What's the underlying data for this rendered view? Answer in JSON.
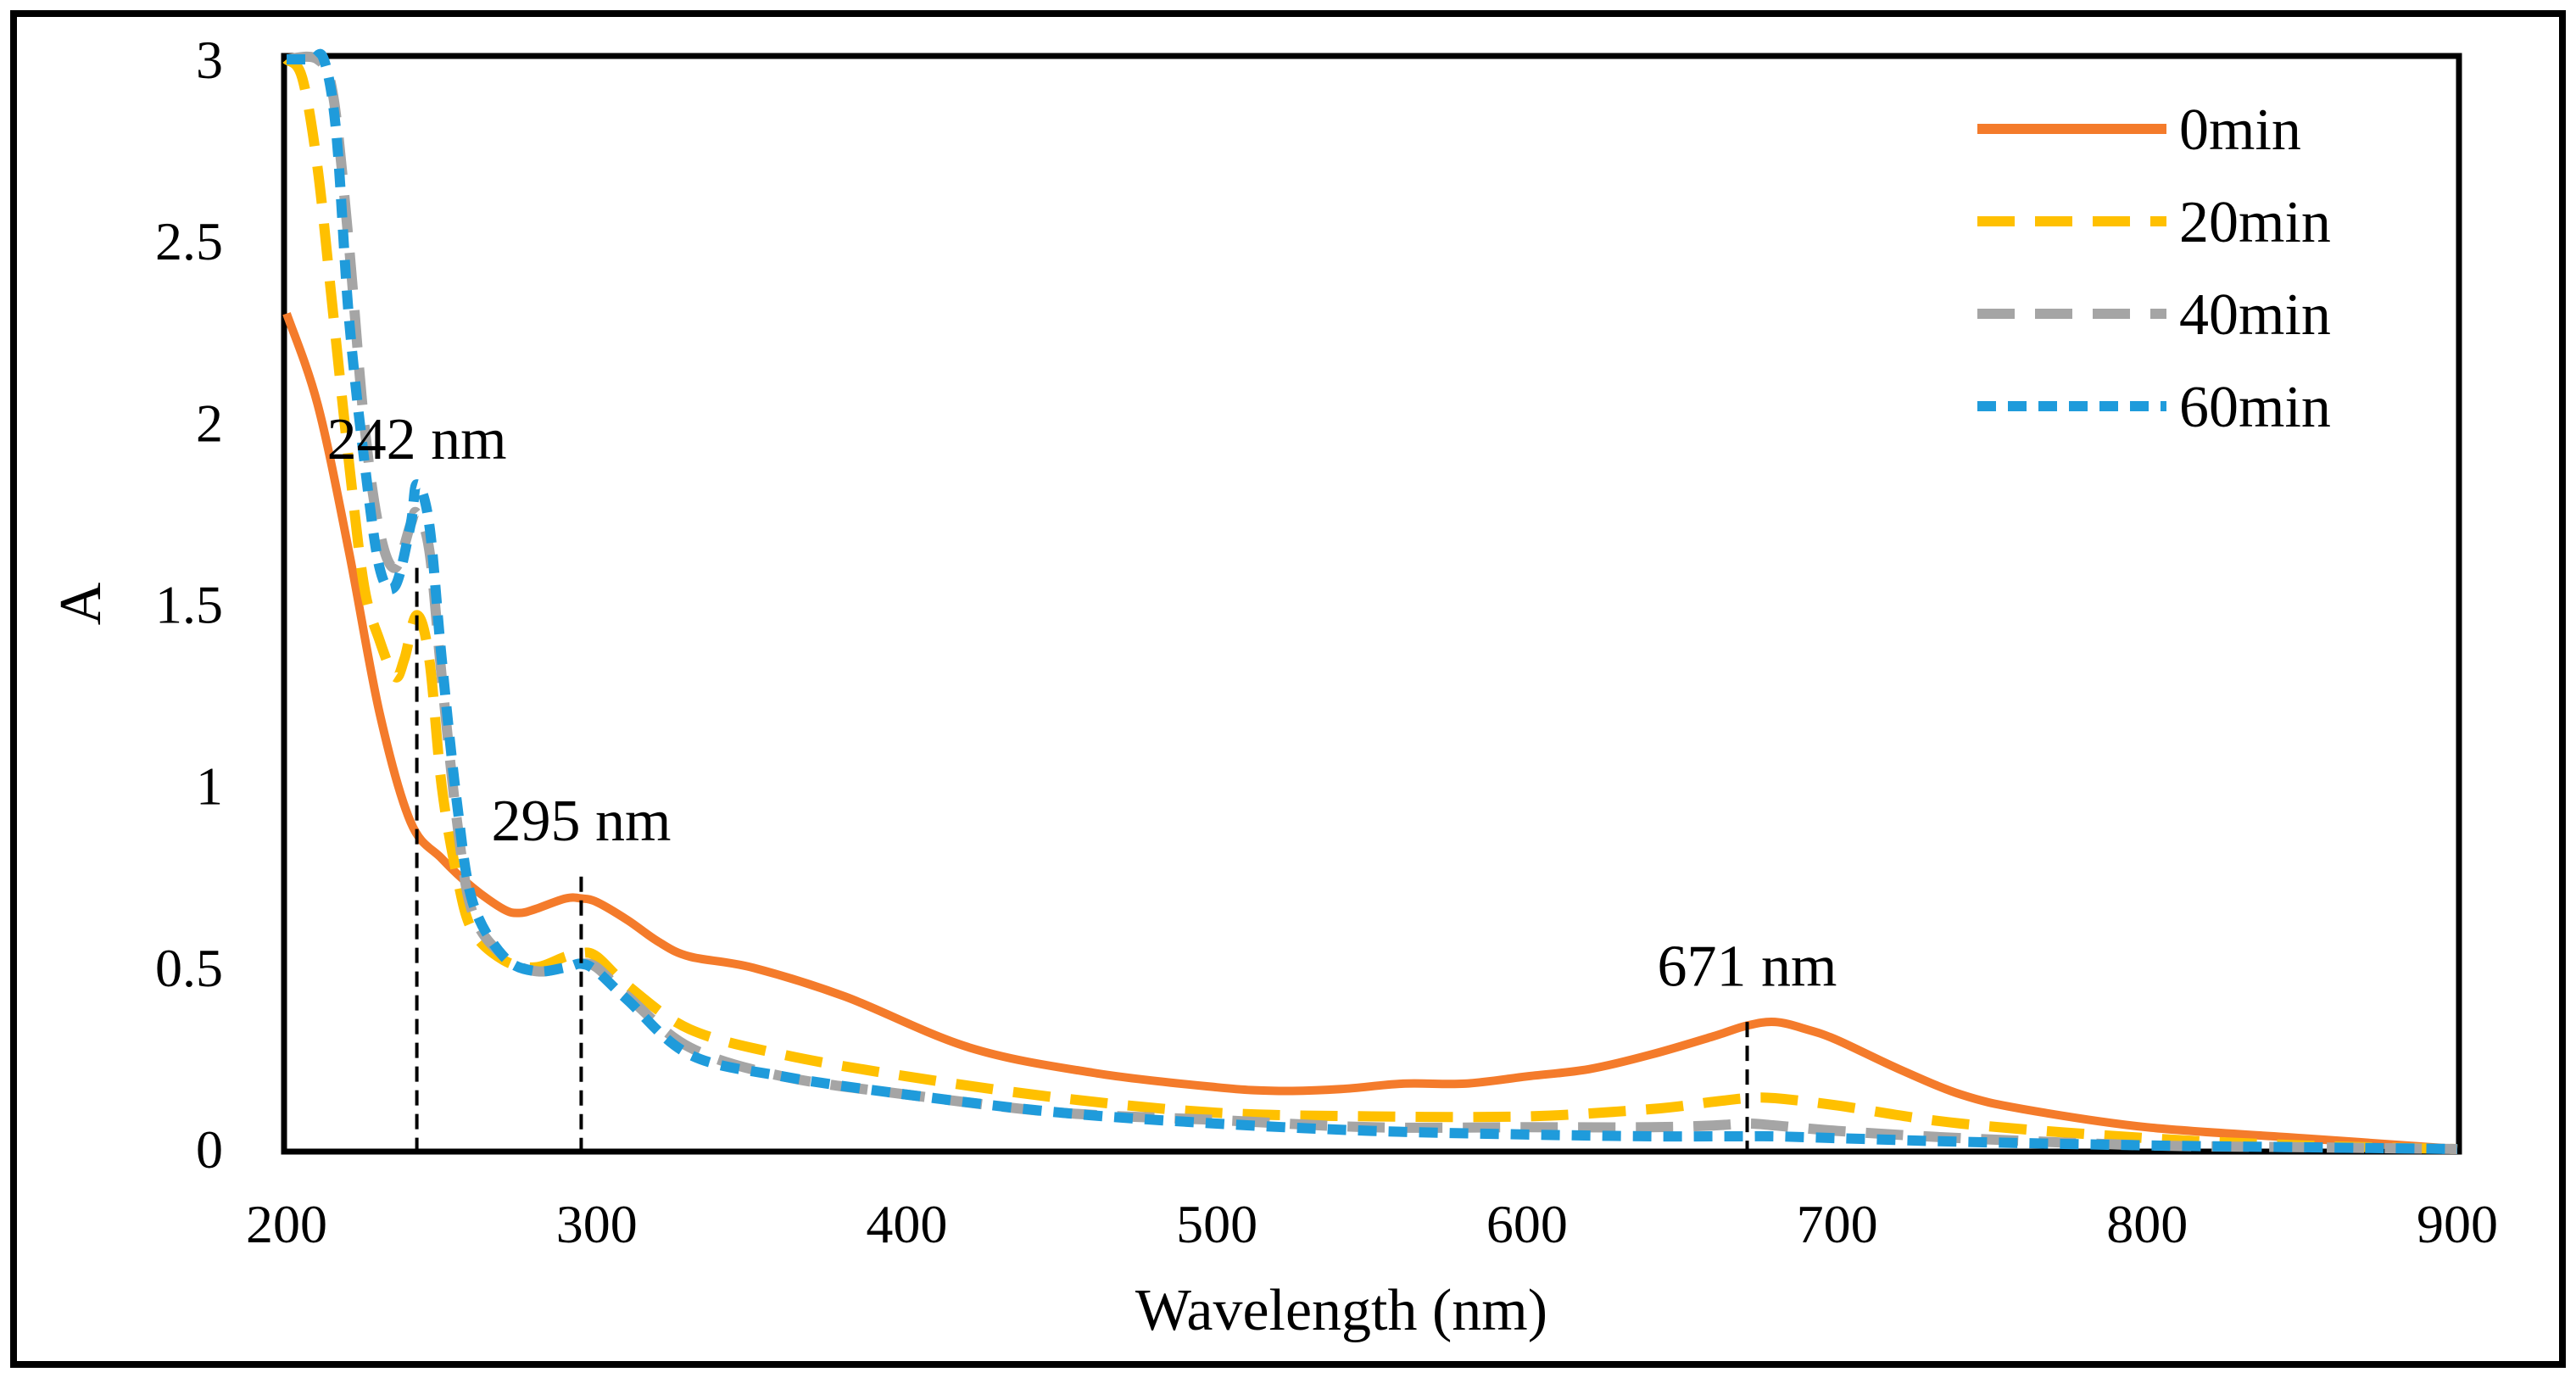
{
  "chart_data": {
    "type": "line",
    "title": "",
    "xlabel": "Wavelength (nm)",
    "ylabel": "A",
    "xlim": [
      200,
      900
    ],
    "ylim": [
      0,
      3
    ],
    "xticks": [
      200,
      300,
      400,
      500,
      600,
      700,
      800,
      900
    ],
    "yticks": [
      0,
      0.5,
      1,
      1.5,
      2,
      2.5,
      3
    ],
    "xtick_labels": [
      "200",
      "300",
      "400",
      "500",
      "600",
      "700",
      "800",
      "900"
    ],
    "ytick_labels": [
      "0",
      "0.5",
      "1",
      "1.5",
      "2",
      "2.5",
      "3"
    ],
    "grid": false,
    "legend_position": "top-right",
    "series": [
      {
        "name": "0min",
        "color": "#F47B2B",
        "dash": "solid",
        "x": [
          200,
          210,
          220,
          230,
          240,
          250,
          260,
          270,
          275,
          280,
          290,
          295,
          300,
          310,
          320,
          330,
          350,
          380,
          420,
          460,
          500,
          520,
          540,
          560,
          580,
          600,
          620,
          640,
          660,
          671,
          680,
          690,
          700,
          720,
          740,
          760,
          800,
          850,
          900
        ],
        "y": [
          2.3,
          2.05,
          1.65,
          1.2,
          0.9,
          0.8,
          0.72,
          0.66,
          0.65,
          0.66,
          0.69,
          0.69,
          0.68,
          0.63,
          0.57,
          0.53,
          0.5,
          0.42,
          0.28,
          0.21,
          0.17,
          0.16,
          0.165,
          0.18,
          0.18,
          0.2,
          0.22,
          0.26,
          0.31,
          0.34,
          0.35,
          0.33,
          0.3,
          0.22,
          0.15,
          0.11,
          0.06,
          0.03,
          0.0
        ]
      },
      {
        "name": "20min",
        "color": "#FFC000",
        "dash": "long-dash",
        "x": [
          200,
          205,
          210,
          215,
          220,
          225,
          230,
          235,
          238,
          242,
          246,
          250,
          255,
          260,
          270,
          280,
          290,
          295,
          300,
          310,
          330,
          360,
          400,
          450,
          500,
          550,
          600,
          640,
          660,
          671,
          680,
          700,
          740,
          800,
          850,
          900
        ],
        "y": [
          3.0,
          2.95,
          2.7,
          2.3,
          1.9,
          1.55,
          1.4,
          1.3,
          1.35,
          1.47,
          1.35,
          1.0,
          0.75,
          0.6,
          0.52,
          0.5,
          0.53,
          0.54,
          0.53,
          0.45,
          0.33,
          0.26,
          0.2,
          0.14,
          0.1,
          0.09,
          0.09,
          0.11,
          0.13,
          0.14,
          0.14,
          0.12,
          0.07,
          0.03,
          0.01,
          0.0
        ]
      },
      {
        "name": "40min",
        "color": "#A5A5A5",
        "dash": "long-dash",
        "x": [
          200,
          210,
          215,
          220,
          225,
          230,
          235,
          240,
          242,
          246,
          250,
          255,
          260,
          270,
          280,
          290,
          295,
          300,
          310,
          330,
          360,
          400,
          450,
          500,
          550,
          600,
          640,
          660,
          671,
          680,
          700,
          740,
          800,
          850,
          900
        ],
        "y": [
          3.0,
          3.0,
          2.9,
          2.5,
          2.0,
          1.7,
          1.6,
          1.72,
          1.75,
          1.65,
          1.3,
          0.9,
          0.65,
          0.53,
          0.49,
          0.5,
          0.51,
          0.5,
          0.42,
          0.28,
          0.2,
          0.15,
          0.1,
          0.08,
          0.06,
          0.06,
          0.06,
          0.065,
          0.07,
          0.065,
          0.05,
          0.03,
          0.01,
          0.005,
          0.0
        ]
      },
      {
        "name": "60min",
        "color": "#1F9BDB",
        "dash": "short-dash",
        "x": [
          200,
          208,
          212,
          216,
          220,
          225,
          230,
          235,
          240,
          242,
          246,
          250,
          255,
          260,
          270,
          280,
          290,
          295,
          300,
          310,
          330,
          360,
          400,
          450,
          500,
          550,
          600,
          640,
          660,
          671,
          680,
          700,
          740,
          800,
          850,
          900
        ],
        "y": [
          3.0,
          3.0,
          3.0,
          2.8,
          2.3,
          1.9,
          1.6,
          1.55,
          1.72,
          1.83,
          1.72,
          1.35,
          0.95,
          0.68,
          0.53,
          0.49,
          0.5,
          0.51,
          0.49,
          0.41,
          0.26,
          0.2,
          0.15,
          0.1,
          0.07,
          0.05,
          0.04,
          0.035,
          0.035,
          0.035,
          0.035,
          0.03,
          0.02,
          0.01,
          0.005,
          0.0
        ]
      }
    ],
    "annotations": [
      {
        "text": "242 nm",
        "x": 242,
        "y": 1.6,
        "label_y": 1.9
      },
      {
        "text": "295 nm",
        "x": 295,
        "y": 0.75,
        "label_y": 0.85
      },
      {
        "text": "671 nm",
        "x": 671,
        "y": 0.35,
        "label_y": 0.45
      }
    ]
  }
}
